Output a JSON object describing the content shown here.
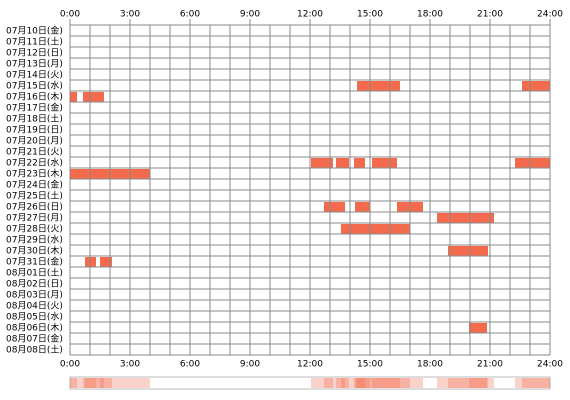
{
  "chart_data": {
    "type": "timeline",
    "color": "#f36b4c",
    "xlim": [
      0,
      24
    ],
    "xticks": [
      {
        "value": 0,
        "label": "0:00"
      },
      {
        "value": 3,
        "label": "3:00"
      },
      {
        "value": 6,
        "label": "6:00"
      },
      {
        "value": 9,
        "label": "9:00"
      },
      {
        "value": 12,
        "label": "12:00"
      },
      {
        "value": 15,
        "label": "15:00"
      },
      {
        "value": 18,
        "label": "18:00"
      },
      {
        "value": 21,
        "label": "21:00"
      },
      {
        "value": 24,
        "label": "24:00"
      }
    ],
    "minor_xticks": [
      0,
      1,
      2,
      3,
      4,
      5,
      6,
      7,
      8,
      9,
      10,
      11,
      12,
      13,
      14,
      15,
      16,
      17,
      18,
      19,
      20,
      21,
      22,
      23,
      24
    ],
    "rows": [
      {
        "label": "07月10日(金)",
        "intervals": []
      },
      {
        "label": "07月11日(土)",
        "intervals": []
      },
      {
        "label": "07月12日(日)",
        "intervals": []
      },
      {
        "label": "07月13日(月)",
        "intervals": []
      },
      {
        "label": "07月14日(火)",
        "intervals": []
      },
      {
        "label": "07月15日(水)",
        "intervals": [
          [
            14.35,
            16.5
          ],
          [
            22.6,
            24
          ]
        ]
      },
      {
        "label": "07月16日(木)",
        "intervals": [
          [
            0,
            0.35
          ],
          [
            0.65,
            1.7
          ]
        ]
      },
      {
        "label": "07月17日(金)",
        "intervals": []
      },
      {
        "label": "07月18日(土)",
        "intervals": []
      },
      {
        "label": "07月19日(日)",
        "intervals": []
      },
      {
        "label": "07月20日(月)",
        "intervals": []
      },
      {
        "label": "07月21日(火)",
        "intervals": []
      },
      {
        "label": "07月22日(水)",
        "intervals": [
          [
            12.05,
            13.15
          ],
          [
            13.3,
            13.95
          ],
          [
            14.2,
            14.75
          ],
          [
            15.1,
            16.35
          ],
          [
            22.25,
            24
          ]
        ]
      },
      {
        "label": "07月23日(木)",
        "intervals": [
          [
            0,
            4
          ]
        ]
      },
      {
        "label": "07月24日(金)",
        "intervals": []
      },
      {
        "label": "07月25日(土)",
        "intervals": []
      },
      {
        "label": "07月26日(日)",
        "intervals": [
          [
            12.7,
            13.75
          ],
          [
            14.25,
            15
          ],
          [
            16.35,
            17.65
          ]
        ]
      },
      {
        "label": "07月27日(月)",
        "intervals": [
          [
            18.35,
            21.2
          ]
        ]
      },
      {
        "label": "07月28日(火)",
        "intervals": [
          [
            13.55,
            17
          ]
        ]
      },
      {
        "label": "07月29日(水)",
        "intervals": []
      },
      {
        "label": "07月30日(木)",
        "intervals": [
          [
            18.9,
            20.9
          ]
        ]
      },
      {
        "label": "07月31日(金)",
        "intervals": [
          [
            0.75,
            1.3
          ],
          [
            1.5,
            2.1
          ]
        ]
      },
      {
        "label": "08月01日(土)",
        "intervals": []
      },
      {
        "label": "08月02日(日)",
        "intervals": []
      },
      {
        "label": "08月03日(月)",
        "intervals": []
      },
      {
        "label": "08月04日(火)",
        "intervals": []
      },
      {
        "label": "08月05日(水)",
        "intervals": []
      },
      {
        "label": "08月06日(木)",
        "intervals": [
          [
            19.95,
            20.85
          ]
        ]
      },
      {
        "label": "08月07日(金)",
        "intervals": []
      },
      {
        "label": "08月08日(土)",
        "intervals": []
      }
    ]
  }
}
